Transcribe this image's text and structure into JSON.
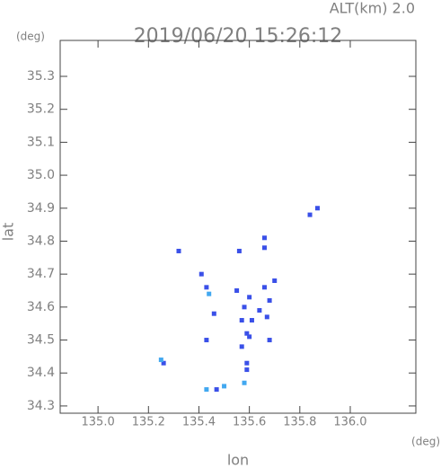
{
  "chart_data": {
    "type": "scatter",
    "title": "2019/06/20 15:26:12",
    "subtitle": "ALT(km) 2.0",
    "y_unit": "(deg)",
    "x_unit": "(deg)",
    "x_label": "lon",
    "y_label": "lat",
    "xlim": [
      134.85,
      136.26
    ],
    "ylim": [
      34.278,
      35.409
    ],
    "xticks": [
      {
        "value": 135.0,
        "label": "135.0"
      },
      135.2,
      135.4,
      135.6,
      135.8,
      {
        "value": 136.0,
        "label": "136.0"
      }
    ],
    "yticks": [
      35.3,
      35.2,
      35.1,
      {
        "value": 35.0,
        "label": "35.0"
      },
      34.9,
      34.8,
      34.7,
      34.6,
      34.5,
      34.4,
      34.3
    ],
    "series": [
      {
        "color": "#3a50e8",
        "x": [
          135.87,
          135.84,
          135.66,
          135.66,
          135.56,
          135.32,
          135.41,
          135.43,
          135.7,
          135.66,
          135.55,
          135.6,
          135.68,
          135.58,
          135.64,
          135.46,
          135.61,
          135.67,
          135.57,
          135.59,
          135.68,
          135.43,
          135.6,
          135.57,
          135.59,
          135.59,
          135.26,
          135.47
        ],
        "values": [
          34.9,
          34.88,
          34.81,
          34.78,
          34.77,
          34.77,
          34.7,
          34.66,
          34.68,
          34.66,
          34.65,
          34.63,
          34.62,
          34.6,
          34.59,
          34.58,
          34.56,
          34.57,
          34.56,
          34.52,
          34.5,
          34.5,
          34.51,
          34.48,
          34.43,
          34.41,
          34.43,
          34.35
        ]
      },
      {
        "color": "#42a8f0",
        "x": [
          135.44,
          135.25,
          135.43,
          135.5,
          135.58
        ],
        "values": [
          34.64,
          34.44,
          34.35,
          34.36,
          34.37
        ]
      }
    ]
  }
}
